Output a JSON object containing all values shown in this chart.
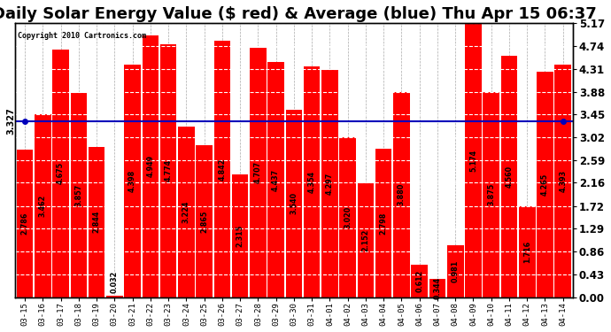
{
  "title": "Daily Solar Energy Value ($ red) & Average (blue) Thu Apr 15 06:37",
  "copyright": "Copyright 2010 Cartronics.com",
  "categories": [
    "03-15",
    "03-16",
    "03-17",
    "03-18",
    "03-19",
    "03-20",
    "03-21",
    "03-22",
    "03-23",
    "03-24",
    "03-25",
    "03-26",
    "03-27",
    "03-28",
    "03-29",
    "03-30",
    "03-31",
    "04-01",
    "04-02",
    "04-03",
    "04-04",
    "04-05",
    "04-06",
    "04-07",
    "04-08",
    "04-09",
    "04-10",
    "04-11",
    "04-12",
    "04-13",
    "04-14"
  ],
  "values": [
    2.786,
    3.462,
    4.675,
    3.857,
    2.844,
    0.032,
    4.398,
    4.949,
    4.774,
    3.224,
    2.865,
    4.842,
    2.315,
    4.707,
    4.437,
    3.54,
    4.354,
    4.297,
    3.02,
    2.152,
    2.798,
    3.88,
    0.612,
    0.344,
    0.981,
    5.174,
    3.875,
    4.56,
    1.716,
    4.265,
    4.393
  ],
  "average": 3.327,
  "bar_color": "#ff0000",
  "avg_line_color": "#0000bb",
  "background_color": "#ffffff",
  "ylim": [
    0.0,
    5.17
  ],
  "yticks": [
    0.0,
    0.43,
    0.86,
    1.29,
    1.72,
    2.16,
    2.59,
    3.02,
    3.45,
    3.88,
    4.31,
    4.74,
    5.17
  ],
  "title_fontsize": 13,
  "avg_label": "3.327",
  "bar_width": 0.92,
  "label_fontsize": 5.8,
  "xtick_fontsize": 6.5,
  "ytick_fontsize": 8.5
}
